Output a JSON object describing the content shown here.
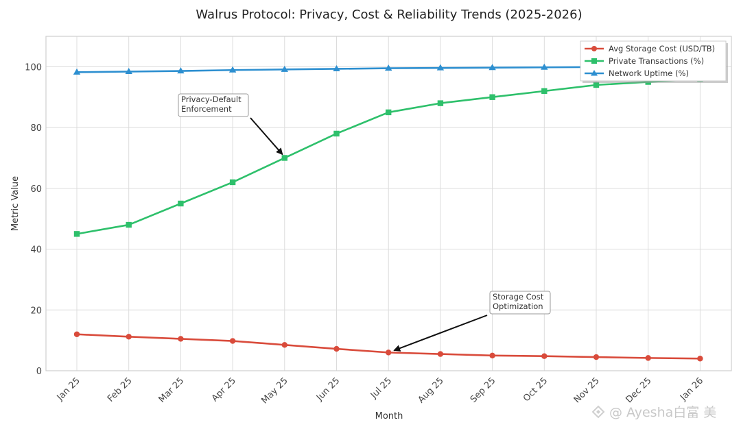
{
  "chart_data": {
    "type": "line",
    "title": "Walrus Protocol: Privacy, Cost & Reliability Trends (2025-2026)",
    "xlabel": "Month",
    "ylabel": "Metric Value",
    "ylim": [
      0,
      110
    ],
    "yticks": [
      0,
      20,
      40,
      60,
      80,
      100
    ],
    "grid": true,
    "legend_position": "top-right",
    "categories": [
      "Jan 25",
      "Feb 25",
      "Mar 25",
      "Apr 25",
      "May 25",
      "Jun 25",
      "Jul 25",
      "Aug 25",
      "Sep 25",
      "Oct 25",
      "Nov 25",
      "Dec 25",
      "Jan 26"
    ],
    "series": [
      {
        "name": "Avg Storage Cost (USD/TB)",
        "color": "#d94b3b",
        "marker": "circle",
        "values": [
          12.0,
          11.2,
          10.5,
          9.8,
          8.5,
          7.2,
          6.0,
          5.5,
          5.0,
          4.8,
          4.5,
          4.2,
          4.0
        ]
      },
      {
        "name": "Private Transactions (%)",
        "color": "#2ec06b",
        "marker": "square",
        "values": [
          45,
          48,
          55,
          62,
          70,
          78,
          85,
          88,
          90,
          92,
          94,
          95,
          96
        ]
      },
      {
        "name": "Network Uptime (%)",
        "color": "#2d8fd0",
        "marker": "triangle",
        "values": [
          98.2,
          98.4,
          98.6,
          98.9,
          99.1,
          99.3,
          99.5,
          99.6,
          99.7,
          99.8,
          99.9,
          99.9,
          99.95
        ]
      }
    ],
    "annotations": [
      {
        "text": [
          "Privacy-Default",
          "Enforcement"
        ],
        "target_series": 1,
        "target_index": 4
      },
      {
        "text": [
          "Storage Cost",
          "Optimization"
        ],
        "target_series": 0,
        "target_index": 6
      }
    ]
  },
  "watermark": "@ Ayesha白富 美"
}
